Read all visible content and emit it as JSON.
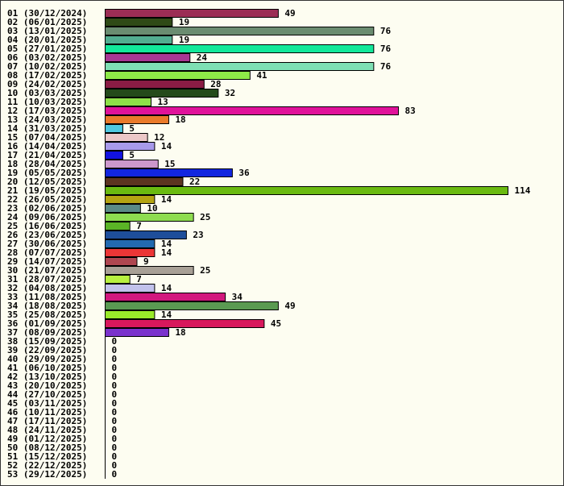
{
  "chart_data": {
    "type": "bar",
    "orientation": "horizontal",
    "title": "",
    "xlabel": "",
    "ylabel": "",
    "xlim": [
      0,
      114
    ],
    "grid": false,
    "legend": "none",
    "categories": [
      "01 (30/12/2024)",
      "02 (06/01/2025)",
      "03 (13/01/2025)",
      "04 (20/01/2025)",
      "05 (27/01/2025)",
      "06 (03/02/2025)",
      "07 (10/02/2025)",
      "08 (17/02/2025)",
      "09 (24/02/2025)",
      "10 (03/03/2025)",
      "11 (10/03/2025)",
      "12 (17/03/2025)",
      "13 (24/03/2025)",
      "14 (31/03/2025)",
      "15 (07/04/2025)",
      "16 (14/04/2025)",
      "17 (21/04/2025)",
      "18 (28/04/2025)",
      "19 (05/05/2025)",
      "20 (12/05/2025)",
      "21 (19/05/2025)",
      "22 (26/05/2025)",
      "23 (02/06/2025)",
      "24 (09/06/2025)",
      "25 (16/06/2025)",
      "26 (23/06/2025)",
      "27 (30/06/2025)",
      "28 (07/07/2025)",
      "29 (14/07/2025)",
      "30 (21/07/2025)",
      "31 (28/07/2025)",
      "32 (04/08/2025)",
      "33 (11/08/2025)",
      "34 (18/08/2025)",
      "35 (25/08/2025)",
      "36 (01/09/2025)",
      "37 (08/09/2025)",
      "38 (15/09/2025)",
      "39 (22/09/2025)",
      "40 (29/09/2025)",
      "41 (06/10/2025)",
      "42 (13/10/2025)",
      "43 (20/10/2025)",
      "44 (27/10/2025)",
      "45 (03/11/2025)",
      "46 (10/11/2025)",
      "47 (17/11/2025)",
      "48 (24/11/2025)",
      "49 (01/12/2025)",
      "50 (08/12/2025)",
      "51 (15/12/2025)",
      "52 (22/12/2025)",
      "53 (29/12/2025)"
    ],
    "values": [
      49,
      19,
      76,
      19,
      76,
      24,
      76,
      41,
      28,
      32,
      13,
      83,
      18,
      5,
      12,
      14,
      5,
      15,
      36,
      22,
      114,
      14,
      10,
      25,
      7,
      23,
      14,
      14,
      9,
      25,
      7,
      14,
      34,
      49,
      14,
      45,
      18,
      0,
      0,
      0,
      0,
      0,
      0,
      0,
      0,
      0,
      0,
      0,
      0,
      0,
      0,
      0,
      0
    ],
    "colors": [
      "#9b2d55",
      "#2f4a16",
      "#6a8c70",
      "#52ad90",
      "#12e89a",
      "#a83794",
      "#7ee0b4",
      "#8eea48",
      "#8a1c44",
      "#244a1a",
      "#8ee048",
      "#e0129a",
      "#ea7a2a",
      "#50c8e0",
      "#ecc8c8",
      "#a89aea",
      "#1212e0",
      "#cc98cc",
      "#1226e0",
      "#5c3420",
      "#6aba10",
      "#b4a412",
      "#5a8a86",
      "#8edc50",
      "#5ab426",
      "#1e4e9a",
      "#226ab0",
      "#ec3636",
      "#ae4650",
      "#a8a096",
      "#b8f040",
      "#c2c2ec",
      "#d2187e",
      "#5a9a52",
      "#9aea2a",
      "#d8185c",
      "#7a32cc",
      "#ffffff",
      "#ffffff",
      "#ffffff",
      "#ffffff",
      "#ffffff",
      "#ffffff",
      "#ffffff",
      "#ffffff",
      "#ffffff",
      "#ffffff",
      "#ffffff",
      "#ffffff",
      "#ffffff",
      "#ffffff",
      "#ffffff",
      "#ffffff"
    ]
  }
}
